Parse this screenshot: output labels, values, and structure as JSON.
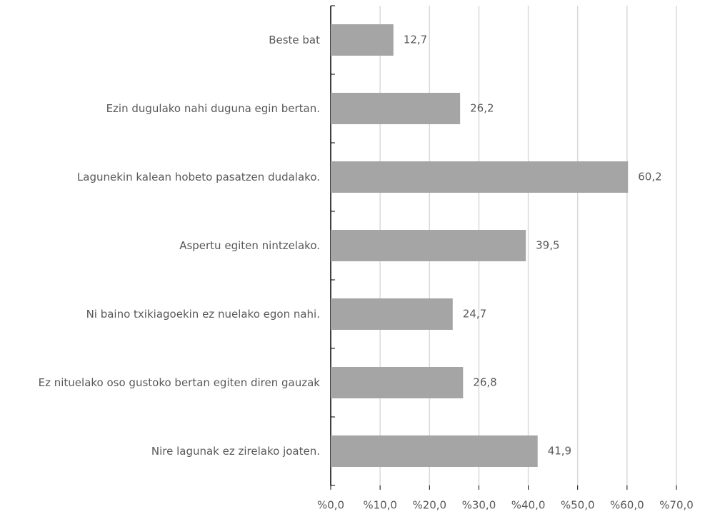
{
  "chart_data": {
    "type": "bar",
    "orientation": "horizontal",
    "categories": [
      "Beste bat",
      "Ezin dugulako nahi duguna egin bertan.",
      "Lagunekin kalean hobeto pasatzen dudalako.",
      "Aspertu egiten nintzelako.",
      "Ni baino txikiagoekin ez nuelako egon nahi.",
      "Ez nituelako oso gustoko bertan egiten diren gauzak",
      "Nire lagunak ez zirelako joaten."
    ],
    "values": [
      12.7,
      26.2,
      60.2,
      39.5,
      24.7,
      26.8,
      41.9
    ],
    "value_labels": [
      "12,7",
      "26,2",
      "60,2",
      "39,5",
      "24,7",
      "26,8",
      "41,9"
    ],
    "color": "#a5a5a5",
    "xlim": [
      0,
      70
    ],
    "xticks": [
      {
        "value": 0,
        "label": "%0,0"
      },
      {
        "value": 10,
        "label": "%10,0"
      },
      {
        "value": 20,
        "label": "%20,0"
      },
      {
        "value": 30,
        "label": "%30,0"
      },
      {
        "value": 40,
        "label": "%40,0"
      },
      {
        "value": 50,
        "label": "%50,0"
      },
      {
        "value": 60,
        "label": "%60,0"
      },
      {
        "value": 70,
        "label": "%70,0"
      }
    ],
    "grid": true
  }
}
